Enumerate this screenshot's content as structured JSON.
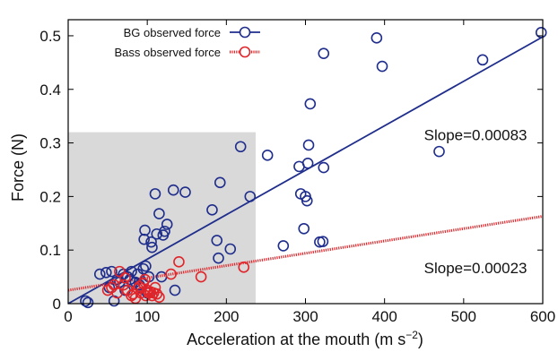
{
  "chart_data": {
    "type": "scatter",
    "title": "",
    "xlabel": "Acceleration at the mouth (m s",
    "xlabel_superscript": "−2",
    "xlabel_suffix": ")",
    "ylabel": "Force (N)",
    "xlim": [
      0,
      600
    ],
    "ylim": [
      0,
      0.53
    ],
    "x_ticks": [
      0,
      100,
      200,
      300,
      400,
      500,
      600
    ],
    "y_ticks": [
      0,
      0.1,
      0.2,
      0.3,
      0.4,
      0.5
    ],
    "x_tick_labels": [
      "0",
      "100",
      "200",
      "300",
      "400",
      "500",
      "600"
    ],
    "y_tick_labels": [
      "0",
      "0.1",
      "0.2",
      "0.3",
      "0.4",
      "0.5"
    ],
    "grid": false,
    "legend_position": "top-left",
    "shaded_region": {
      "x": [
        0,
        237
      ],
      "y": [
        0,
        0.32
      ],
      "color": "#d9d9d9"
    },
    "series": [
      {
        "name": "BG observed force",
        "color": "#1f2d8c",
        "marker": "open-circle",
        "fit_line": {
          "slope": 0.00083,
          "intercept": 0.0,
          "x_range": [
            0,
            600
          ],
          "style": "solid"
        },
        "points": [
          [
            22,
            0.005
          ],
          [
            25,
            0.002
          ],
          [
            40,
            0.055
          ],
          [
            48,
            0.058
          ],
          [
            55,
            0.06
          ],
          [
            52,
            0.03
          ],
          [
            58,
            0.005
          ],
          [
            62,
            0.045
          ],
          [
            65,
            0.04
          ],
          [
            70,
            0.055
          ],
          [
            72,
            0.025
          ],
          [
            75,
            0.05
          ],
          [
            78,
            0.045
          ],
          [
            80,
            0.06
          ],
          [
            85,
            0.04
          ],
          [
            88,
            0.055
          ],
          [
            90,
            0.035
          ],
          [
            92,
            0.03
          ],
          [
            95,
            0.065
          ],
          [
            96,
            0.12
          ],
          [
            97,
            0.137
          ],
          [
            98,
            0.07
          ],
          [
            100,
            0.02
          ],
          [
            102,
            0.05
          ],
          [
            105,
            0.115
          ],
          [
            106,
            0.105
          ],
          [
            110,
            0.205
          ],
          [
            112,
            0.13
          ],
          [
            115,
            0.168
          ],
          [
            118,
            0.05
          ],
          [
            120,
            0.128
          ],
          [
            122,
            0.135
          ],
          [
            125,
            0.148
          ],
          [
            133,
            0.212
          ],
          [
            135,
            0.025
          ],
          [
            148,
            0.208
          ],
          [
            182,
            0.175
          ],
          [
            188,
            0.118
          ],
          [
            190,
            0.085
          ],
          [
            192,
            0.226
          ],
          [
            205,
            0.102
          ],
          [
            218,
            0.293
          ],
          [
            230,
            0.2
          ],
          [
            252,
            0.277
          ],
          [
            272,
            0.108
          ],
          [
            292,
            0.256
          ],
          [
            294,
            0.205
          ],
          [
            298,
            0.14
          ],
          [
            300,
            0.2
          ],
          [
            302,
            0.192
          ],
          [
            303,
            0.262
          ],
          [
            304,
            0.296
          ],
          [
            306,
            0.373
          ],
          [
            318,
            0.115
          ],
          [
            322,
            0.116
          ],
          [
            323,
            0.467
          ],
          [
            323,
            0.254
          ],
          [
            390,
            0.496
          ],
          [
            397,
            0.443
          ],
          [
            469,
            0.284
          ],
          [
            524,
            0.455
          ],
          [
            598,
            0.506
          ]
        ]
      },
      {
        "name": "Bass observed force",
        "color": "#e0252a",
        "marker": "open-circle",
        "fit_line": {
          "slope": 0.00023,
          "intercept": 0.025,
          "x_range": [
            0,
            600
          ],
          "style": "dotted"
        },
        "points": [
          [
            50,
            0.025
          ],
          [
            55,
            0.03
          ],
          [
            58,
            0.035
          ],
          [
            62,
            0.02
          ],
          [
            65,
            0.06
          ],
          [
            70,
            0.035
          ],
          [
            72,
            0.048
          ],
          [
            75,
            0.025
          ],
          [
            80,
            0.015
          ],
          [
            82,
            0.018
          ],
          [
            85,
            0.01
          ],
          [
            88,
            0.028
          ],
          [
            90,
            0.032
          ],
          [
            92,
            0.02
          ],
          [
            95,
            0.038
          ],
          [
            97,
            0.045
          ],
          [
            98,
            0.015
          ],
          [
            100,
            0.025
          ],
          [
            102,
            0.02
          ],
          [
            104,
            0.022
          ],
          [
            106,
            0.015
          ],
          [
            108,
            0.02
          ],
          [
            110,
            0.03
          ],
          [
            112,
            0.018
          ],
          [
            115,
            0.012
          ],
          [
            130,
            0.055
          ],
          [
            140,
            0.078
          ],
          [
            168,
            0.05
          ],
          [
            222,
            0.068
          ]
        ]
      }
    ],
    "annotations": [
      {
        "text": "Slope=0.00083",
        "x": 515,
        "y": 0.305
      },
      {
        "text": "Slope=0.00023",
        "x": 515,
        "y": 0.057
      }
    ]
  }
}
